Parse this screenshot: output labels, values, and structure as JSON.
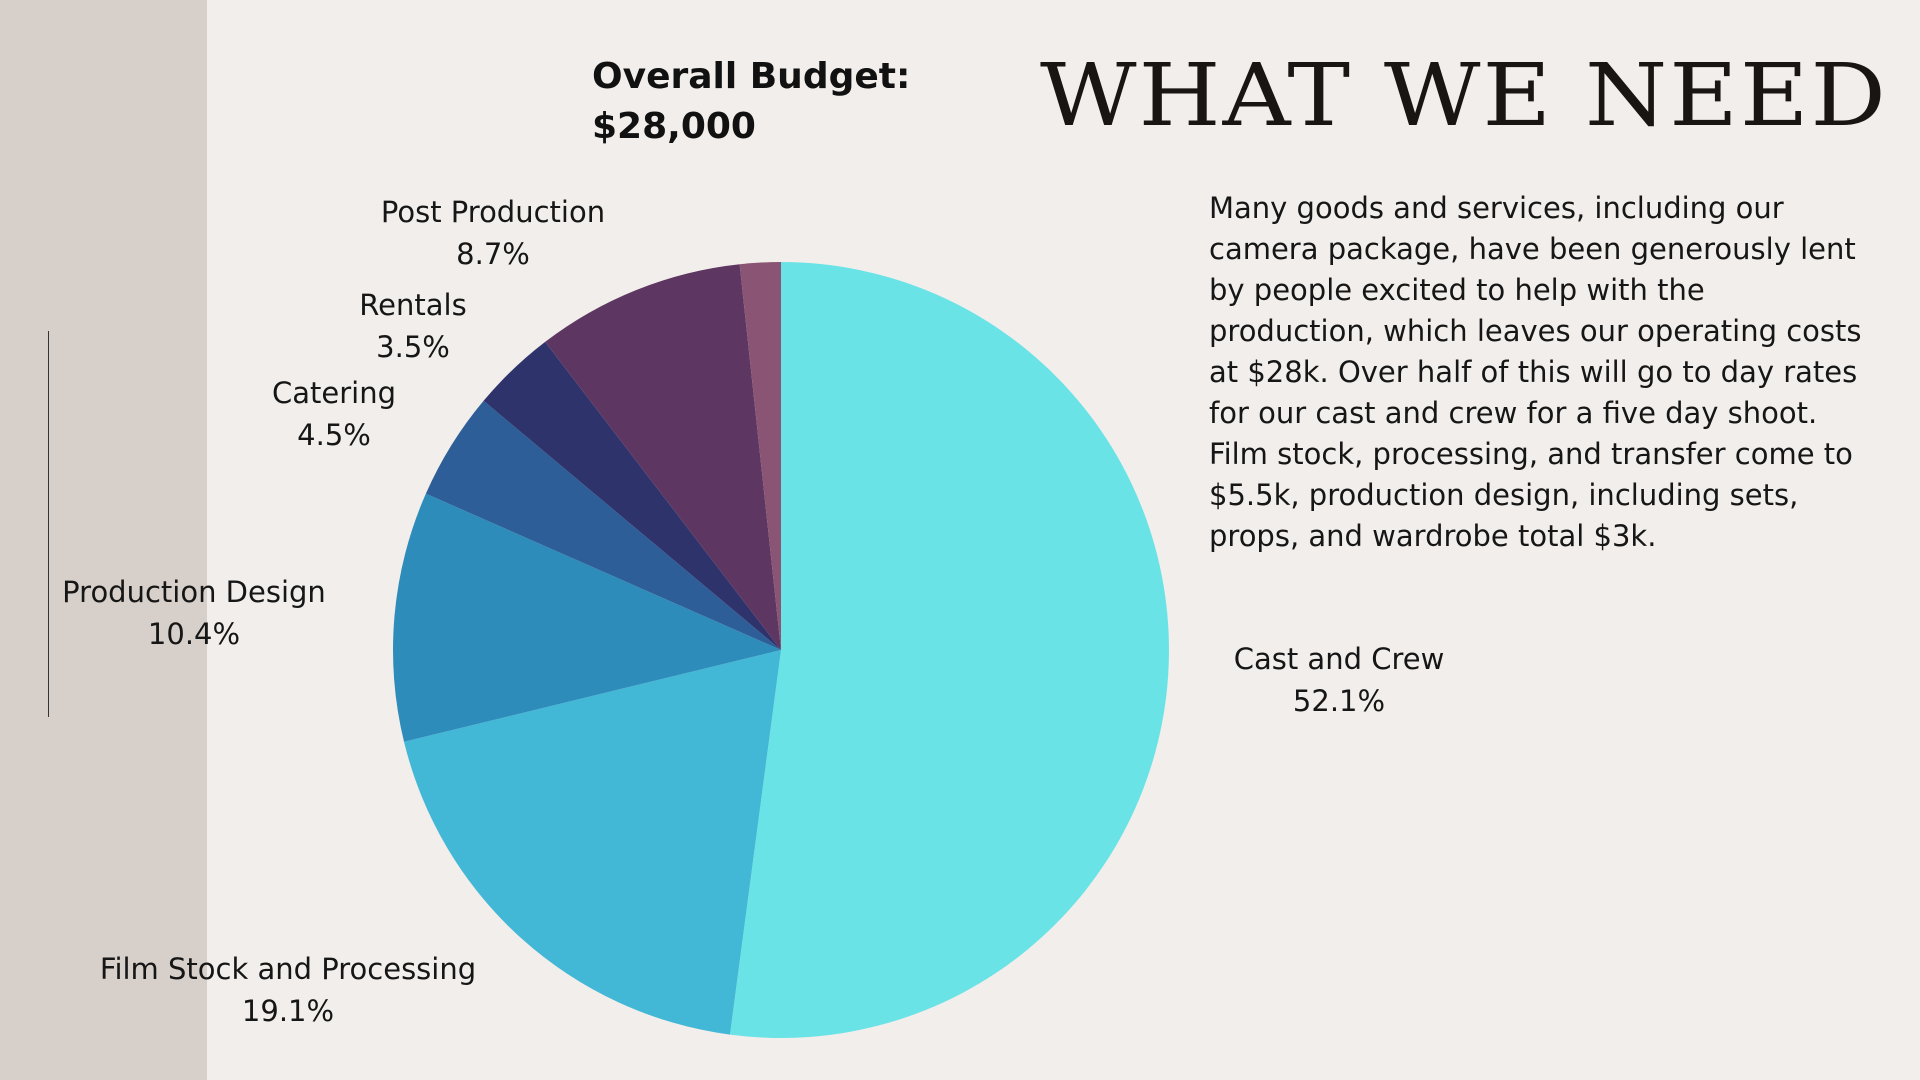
{
  "title_block": {
    "budget_line1": "Overall Budget:",
    "budget_line2": "$28,000",
    "headline": "WHAT WE NEED"
  },
  "description": "Many goods and services, including our camera package, have been generously lent by people excited to help with the production, which leaves our operating costs at $28k. Over half of this will go to day rates for our cast and crew for a five day shoot. Film stock, processing, and transfer come to $5.5k, production design, including sets, props, and wardrobe total $3k.",
  "chart_data": {
    "type": "pie",
    "title": "",
    "slices": [
      {
        "label": "Cast and Crew",
        "value": 52.1,
        "display": "52.1%",
        "color": "#6ae3e6"
      },
      {
        "label": "Film Stock and Processing",
        "value": 19.1,
        "display": "19.1%",
        "color": "#42b7d6"
      },
      {
        "label": "Production Design",
        "value": 10.4,
        "display": "10.4%",
        "color": "#2e8cbb"
      },
      {
        "label": "Catering",
        "value": 4.5,
        "display": "4.5%",
        "color": "#2e5e98"
      },
      {
        "label": "Rentals",
        "value": 3.5,
        "display": "3.5%",
        "color": "#2f336b"
      },
      {
        "label": "Post Production",
        "value": 8.7,
        "display": "8.7%",
        "color": "#5e3662"
      },
      {
        "label": "",
        "value": 1.7,
        "display": "",
        "color": "#8a5574"
      }
    ]
  }
}
